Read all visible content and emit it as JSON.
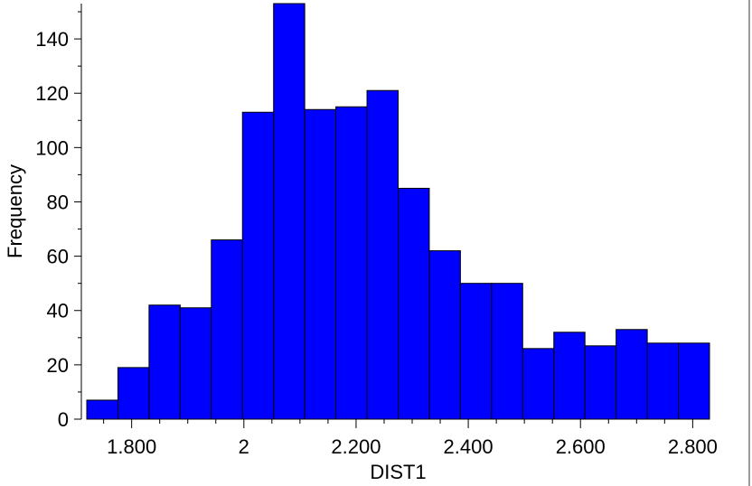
{
  "chart_data": {
    "type": "bar",
    "histogram": true,
    "title": "",
    "xlabel": "DIST1",
    "ylabel": "Frequency",
    "bin_width": 0.0555,
    "bins": [
      {
        "start": 1.72,
        "end": 1.7755,
        "count": 7
      },
      {
        "start": 1.7755,
        "end": 1.831,
        "count": 19
      },
      {
        "start": 1.831,
        "end": 1.8865,
        "count": 42
      },
      {
        "start": 1.8865,
        "end": 1.942,
        "count": 41
      },
      {
        "start": 1.942,
        "end": 1.9975,
        "count": 66
      },
      {
        "start": 1.9975,
        "end": 2.053,
        "count": 113
      },
      {
        "start": 2.053,
        "end": 2.1085,
        "count": 153
      },
      {
        "start": 2.1085,
        "end": 2.164,
        "count": 114
      },
      {
        "start": 2.164,
        "end": 2.2195,
        "count": 115
      },
      {
        "start": 2.2195,
        "end": 2.275,
        "count": 121
      },
      {
        "start": 2.275,
        "end": 2.3305,
        "count": 85
      },
      {
        "start": 2.3305,
        "end": 2.386,
        "count": 62
      },
      {
        "start": 2.386,
        "end": 2.4415,
        "count": 50
      },
      {
        "start": 2.4415,
        "end": 2.497,
        "count": 50
      },
      {
        "start": 2.497,
        "end": 2.5525,
        "count": 26
      },
      {
        "start": 2.5525,
        "end": 2.608,
        "count": 32
      },
      {
        "start": 2.608,
        "end": 2.6635,
        "count": 27
      },
      {
        "start": 2.6635,
        "end": 2.719,
        "count": 33
      },
      {
        "start": 2.719,
        "end": 2.7745,
        "count": 28
      },
      {
        "start": 2.7745,
        "end": 2.83,
        "count": 28
      }
    ],
    "xlim": [
      1.72,
      2.83
    ],
    "ylim": [
      0,
      153
    ],
    "x_ticks": [
      {
        "value": 1.8,
        "label": "1.800"
      },
      {
        "value": 2.0,
        "label": "2"
      },
      {
        "value": 2.2,
        "label": "2.200"
      },
      {
        "value": 2.4,
        "label": "2.400"
      },
      {
        "value": 2.6,
        "label": "2.600"
      },
      {
        "value": 2.8,
        "label": "2.800"
      }
    ],
    "y_ticks": [
      {
        "value": 0,
        "label": "0"
      },
      {
        "value": 20,
        "label": "20"
      },
      {
        "value": 40,
        "label": "40"
      },
      {
        "value": 60,
        "label": "60"
      },
      {
        "value": 80,
        "label": "80"
      },
      {
        "value": 100,
        "label": "100"
      },
      {
        "value": 120,
        "label": "120"
      },
      {
        "value": 140,
        "label": "140"
      }
    ],
    "bar_color": "#0000ff",
    "grid": false,
    "legend": "none"
  }
}
